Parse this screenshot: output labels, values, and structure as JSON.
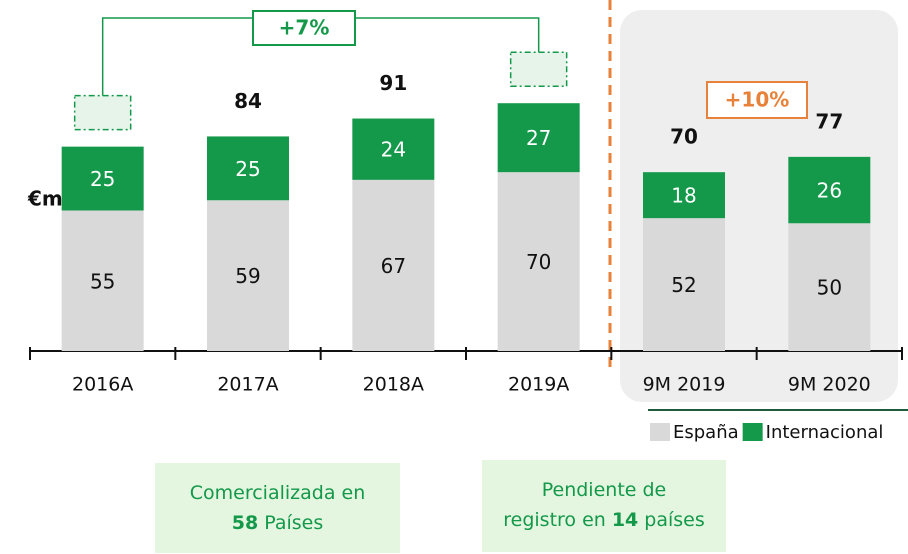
{
  "chart_data": {
    "type": "bar",
    "stacked": true,
    "unit_label": "€m",
    "categories": [
      "2016A",
      "2017A",
      "2018A",
      "2019A",
      "9M 2019",
      "9M 2020"
    ],
    "series": [
      {
        "name": "España",
        "color": "#d9d9d9",
        "label_color": "#111111",
        "values": [
          55,
          59,
          67,
          70,
          52,
          50
        ]
      },
      {
        "name": "Internacional",
        "color": "#14994a",
        "label_color": "#ffffff",
        "values": [
          25,
          25,
          24,
          27,
          18,
          26
        ]
      }
    ],
    "totals": [
      80,
      84,
      91,
      97,
      70,
      77
    ],
    "ylim": [
      0,
      110
    ],
    "annotations": [
      "+7%",
      "+10%"
    ],
    "notes": [
      [
        [
          {
            "text": "Comercializada en"
          }
        ],
        [
          {
            "text": "58",
            "bold": true
          },
          {
            "text": "Países"
          }
        ]
      ],
      [
        [
          {
            "text": "Pendiente de"
          }
        ],
        [
          {
            "text": "registro en"
          },
          {
            "text": "14",
            "bold": true
          },
          {
            "text": "países"
          }
        ]
      ]
    ]
  }
}
